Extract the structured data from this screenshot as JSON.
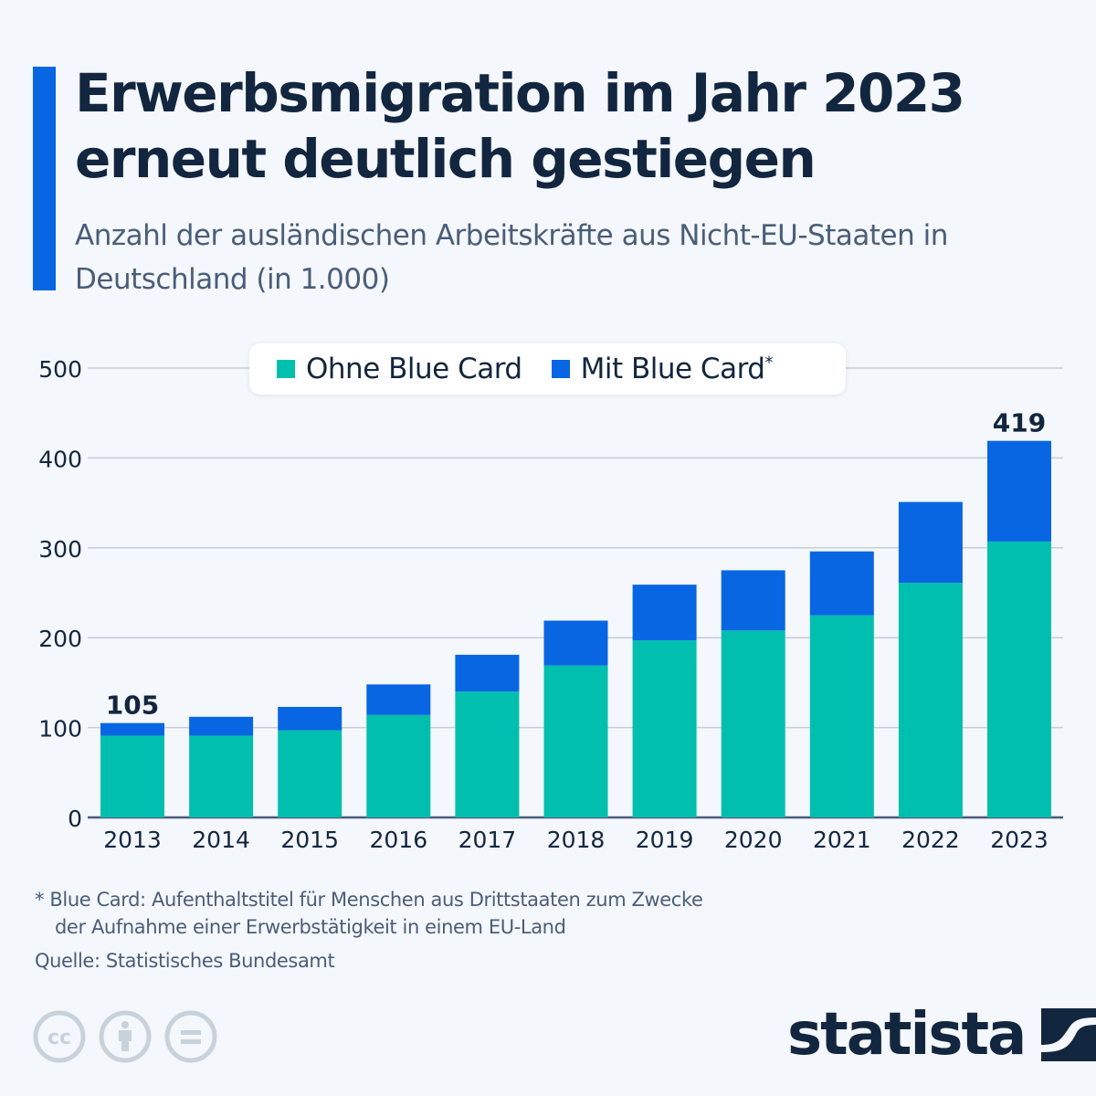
{
  "header": {
    "title": "Erwerbsmigration im Jahr 2023 erneut deutlich gestiegen",
    "subtitle": "Anzahl der ausländischen Arbeitskräfte aus Nicht-EU-Staaten in Deutschland (in 1.000)"
  },
  "colors": {
    "accent": "#0866e3",
    "ohne_blue_card": "#00bfae",
    "mit_blue_card": "#0866e3",
    "text_dark": "#13263f",
    "text_muted": "#4a5d79",
    "grid": "#c6ced8",
    "background": "#f4f7fb"
  },
  "legend": {
    "items": [
      {
        "label": "Ohne Blue Card",
        "suffix": ""
      },
      {
        "label": "Mit Blue Card",
        "suffix": "*"
      }
    ]
  },
  "chart_data": {
    "type": "bar",
    "stacked": true,
    "title": "Erwerbsmigration im Jahr 2023 erneut deutlich gestiegen",
    "subtitle": "Anzahl der ausländischen Arbeitskräfte aus Nicht-EU-Staaten in Deutschland (in 1.000)",
    "xlabel": "",
    "ylabel": "",
    "ylim": [
      0,
      500
    ],
    "yticks": [
      0,
      100,
      200,
      300,
      400,
      500
    ],
    "grid": true,
    "legend_position": "top-center",
    "categories": [
      "2013",
      "2014",
      "2015",
      "2016",
      "2017",
      "2018",
      "2019",
      "2020",
      "2021",
      "2022",
      "2023"
    ],
    "series": [
      {
        "name": "Ohne Blue Card",
        "values": [
          91,
          91,
          97,
          114,
          140,
          169,
          197,
          208,
          225,
          261,
          307
        ]
      },
      {
        "name": "Mit Blue Card",
        "values": [
          14,
          21,
          26,
          34,
          41,
          50,
          62,
          67,
          71,
          90,
          112
        ]
      }
    ],
    "totals": [
      105,
      112,
      123,
      148,
      181,
      219,
      259,
      275,
      296,
      351,
      419
    ],
    "data_labels": [
      {
        "category": "2013",
        "text": "105"
      },
      {
        "category": "2023",
        "text": "419"
      }
    ]
  },
  "footer": {
    "footnote_line1": "* Blue Card: Aufenthaltstitel für Menschen aus Drittstaaten zum Zwecke",
    "footnote_line2": "der Aufnahme einer Erwerbstätigkeit in einem EU-Land",
    "source": "Quelle: Statistisches Bundesamt",
    "license_icons": [
      "cc-icon",
      "attribution-icon",
      "no-derivatives-icon"
    ],
    "brand": "statista"
  }
}
